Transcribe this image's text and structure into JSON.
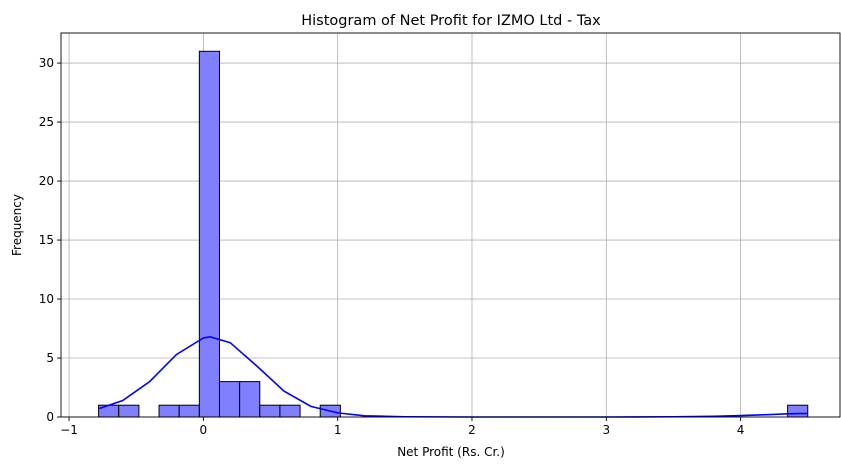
{
  "chart_data": {
    "type": "bar",
    "subtype": "histogram-with-kde",
    "title": "Histogram of Net Profit for IZMO Ltd - Tax",
    "xlabel": "Net Profit (Rs. Cr.)",
    "ylabel": "Frequency",
    "xlim": [
      -1.06,
      4.74
    ],
    "ylim": [
      0,
      32.55
    ],
    "x_ticks": [
      -1,
      0,
      1,
      2,
      3,
      4
    ],
    "y_ticks": [
      0,
      5,
      10,
      15,
      20,
      25,
      30
    ],
    "grid": true,
    "bar_color": "#8080ff",
    "bar_edge_color": "#000000",
    "kde_color": "#0000ff",
    "bins": [
      {
        "x0": -0.78,
        "x1": -0.63,
        "count": 1
      },
      {
        "x0": -0.63,
        "x1": -0.48,
        "count": 1
      },
      {
        "x0": -0.48,
        "x1": -0.33,
        "count": 0
      },
      {
        "x0": -0.33,
        "x1": -0.18,
        "count": 1
      },
      {
        "x0": -0.18,
        "x1": -0.03,
        "count": 1
      },
      {
        "x0": -0.03,
        "x1": 0.12,
        "count": 31
      },
      {
        "x0": 0.12,
        "x1": 0.27,
        "count": 3
      },
      {
        "x0": 0.27,
        "x1": 0.42,
        "count": 3
      },
      {
        "x0": 0.42,
        "x1": 0.57,
        "count": 1
      },
      {
        "x0": 0.57,
        "x1": 0.72,
        "count": 1
      },
      {
        "x0": 0.72,
        "x1": 0.87,
        "count": 0
      },
      {
        "x0": 0.87,
        "x1": 1.02,
        "count": 1
      },
      {
        "x0": 4.35,
        "x1": 4.5,
        "count": 1
      }
    ],
    "kde": {
      "x": [
        -0.78,
        -0.6,
        -0.4,
        -0.2,
        0.0,
        0.05,
        0.2,
        0.4,
        0.6,
        0.8,
        1.0,
        1.2,
        1.5,
        2.0,
        2.5,
        3.0,
        3.5,
        3.8,
        4.0,
        4.2,
        4.35,
        4.5
      ],
      "y": [
        0.7,
        1.4,
        3.0,
        5.3,
        6.7,
        6.8,
        6.3,
        4.3,
        2.2,
        0.9,
        0.35,
        0.1,
        0.02,
        0.0,
        0.0,
        0.0,
        0.02,
        0.06,
        0.12,
        0.2,
        0.27,
        0.3
      ]
    }
  }
}
